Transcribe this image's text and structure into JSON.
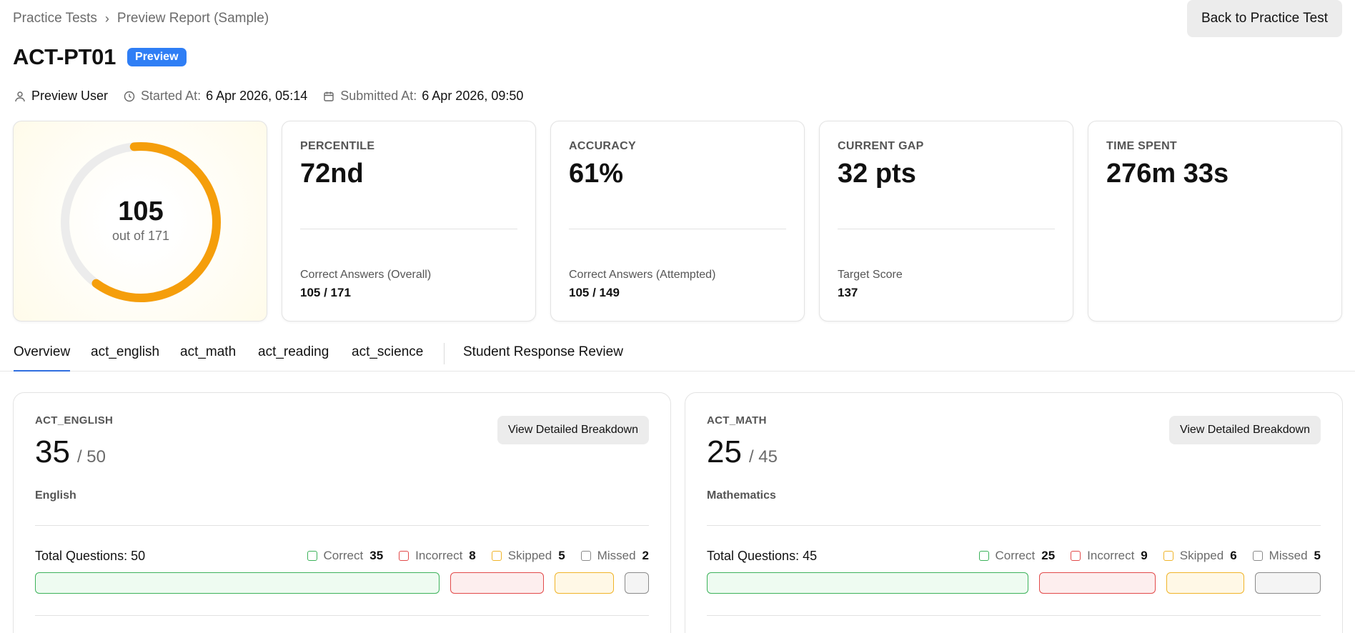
{
  "breadcrumb": {
    "items": [
      "Practice Tests",
      "Preview Report (Sample)"
    ],
    "separator": "›"
  },
  "header": {
    "back_label": "Back to Practice Test",
    "title": "ACT-PT01",
    "badge": "Preview"
  },
  "meta": {
    "user": "Preview User",
    "started_label": "Started At:",
    "started_value": "6 Apr 2026, 05:14",
    "submitted_label": "Submitted At:",
    "submitted_value": "6 Apr 2026, 09:50"
  },
  "score": {
    "value": "105",
    "sub": "out of 171",
    "fraction": 0.614,
    "color": "#f59e0b",
    "track_color": "#ececec"
  },
  "stats": [
    {
      "label": "PERCENTILE",
      "value": "72nd",
      "foot_label": "Correct Answers (Overall)",
      "foot_value": "105 / 171"
    },
    {
      "label": "ACCURACY",
      "value": "61%",
      "foot_label": "Correct Answers (Attempted)",
      "foot_value": "105 / 149"
    },
    {
      "label": "CURRENT GAP",
      "value": "32 pts",
      "foot_label": "Target Score",
      "foot_value": "137"
    },
    {
      "label": "TIME SPENT",
      "value": "276m 33s"
    }
  ],
  "tabs": [
    "Overview",
    "act_english",
    "act_math",
    "act_reading",
    "act_science",
    "Student Response Review"
  ],
  "active_tab": 0,
  "subjects": [
    {
      "code": "ACT_ENGLISH",
      "score": "35",
      "max": "/ 50",
      "name": "English",
      "button": "View Detailed Breakdown",
      "total": "Total Questions: 50",
      "correct_label": "Correct",
      "correct": "35",
      "incorrect_label": "Incorrect",
      "incorrect": "8",
      "skipped_label": "Skipped",
      "skipped": "5",
      "missed_label": "Missed",
      "missed": "2",
      "counts": [
        35,
        8,
        5,
        2
      ]
    },
    {
      "code": "ACT_MATH",
      "score": "25",
      "max": "/ 45",
      "name": "Mathematics",
      "button": "View Detailed Breakdown",
      "total": "Total Questions: 45",
      "correct_label": "Correct",
      "correct": "25",
      "incorrect_label": "Incorrect",
      "incorrect": "9",
      "skipped_label": "Skipped",
      "skipped": "6",
      "missed_label": "Missed",
      "missed": "5",
      "counts": [
        25,
        9,
        6,
        5
      ]
    }
  ],
  "colors": {
    "correct": "#3cb25a",
    "incorrect": "#e24a4a",
    "skipped": "#f0b429",
    "missed": "#8a8a8a",
    "accent": "#2f7ef5"
  }
}
